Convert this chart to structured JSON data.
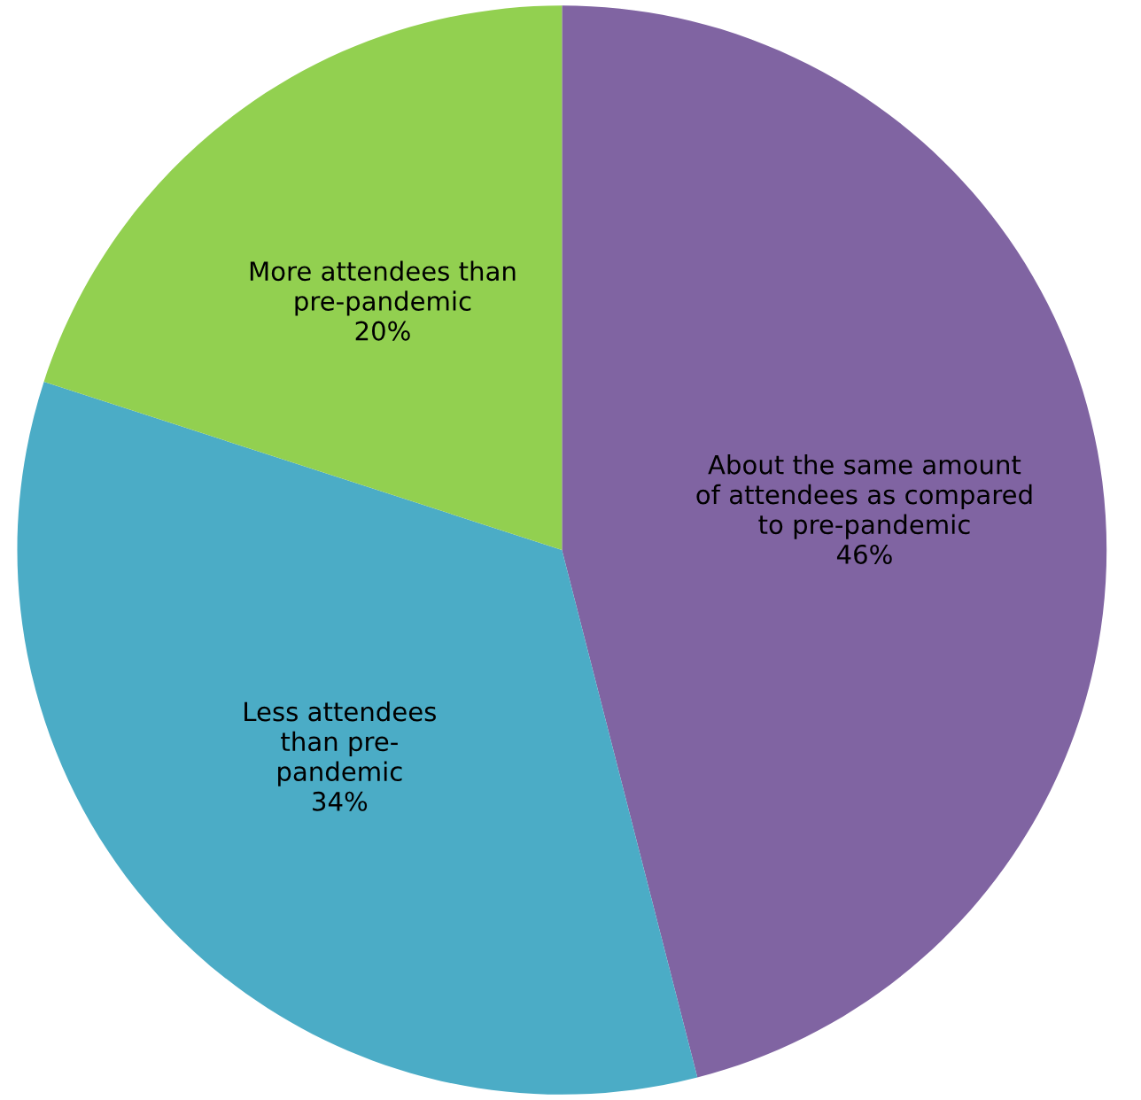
{
  "chart_data": {
    "type": "pie",
    "categories": [
      "About the same amount\nof attendees as compared\nto pre-pandemic",
      "Less attendees\nthan pre-\npandemic",
      "More attendees than\npre-pandemic"
    ],
    "values": [
      46,
      34,
      20
    ],
    "colors": [
      "#8064a2",
      "#4bacc6",
      "#92d050"
    ],
    "value_labels": [
      "46%",
      "34%",
      "20%"
    ]
  }
}
